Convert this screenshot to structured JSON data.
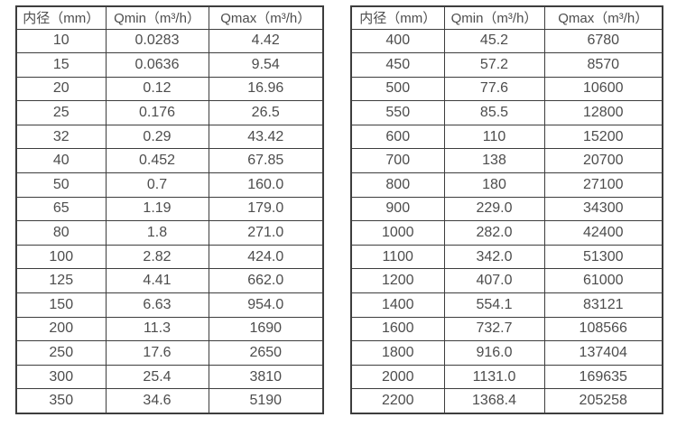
{
  "colors": {
    "bg": "#ffffff",
    "text": "#4d4d4d",
    "border": "#3d3d3d"
  },
  "tables": [
    {
      "name": "flow-rate-table-small-diameters",
      "headers": [
        "内径（mm）",
        "Qmin（m³/h）",
        "Qmax（m³/h）"
      ],
      "rows": [
        [
          "10",
          "0.0283",
          "4.42"
        ],
        [
          "15",
          "0.0636",
          "9.54"
        ],
        [
          "20",
          "0.12",
          "16.96"
        ],
        [
          "25",
          "0.176",
          "26.5"
        ],
        [
          "32",
          "0.29",
          "43.42"
        ],
        [
          "40",
          "0.452",
          "67.85"
        ],
        [
          "50",
          "0.7",
          "160.0"
        ],
        [
          "65",
          "1.19",
          "179.0"
        ],
        [
          "80",
          "1.8",
          "271.0"
        ],
        [
          "100",
          "2.82",
          "424.0"
        ],
        [
          "125",
          "4.41",
          "662.0"
        ],
        [
          "150",
          "6.63",
          "954.0"
        ],
        [
          "200",
          "11.3",
          "1690"
        ],
        [
          "250",
          "17.6",
          "2650"
        ],
        [
          "300",
          "25.4",
          "3810"
        ],
        [
          "350",
          "34.6",
          "5190"
        ]
      ]
    },
    {
      "name": "flow-rate-table-large-diameters",
      "headers": [
        "内径（mm）",
        "Qmin（m³/h）",
        "Qmax（m³/h）"
      ],
      "rows": [
        [
          "400",
          "45.2",
          "6780"
        ],
        [
          "450",
          "57.2",
          "8570"
        ],
        [
          "500",
          "77.6",
          "10600"
        ],
        [
          "550",
          "85.5",
          "12800"
        ],
        [
          "600",
          "110",
          "15200"
        ],
        [
          "700",
          "138",
          "20700"
        ],
        [
          "800",
          "180",
          "27100"
        ],
        [
          "900",
          "229.0",
          "34300"
        ],
        [
          "1000",
          "282.0",
          "42400"
        ],
        [
          "1100",
          "342.0",
          "51300"
        ],
        [
          "1200",
          "407.0",
          "61000"
        ],
        [
          "1400",
          "554.1",
          "83121"
        ],
        [
          "1600",
          "732.7",
          "108566"
        ],
        [
          "1800",
          "916.0",
          "137404"
        ],
        [
          "2000",
          "1131.0",
          "169635"
        ],
        [
          "2200",
          "1368.4",
          "205258"
        ]
      ]
    }
  ]
}
